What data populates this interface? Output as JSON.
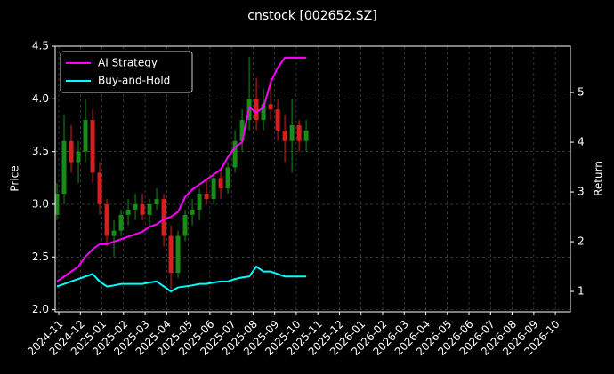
{
  "chart_data": {
    "type": "candlestick",
    "title": "cnstock [002652.SZ]",
    "ylabel": "Price",
    "y2label": "Return",
    "x": [
      2024.8264,
      2024.8539,
      2024.8814,
      2024.9089,
      2024.9364,
      2024.9639,
      2024.9913,
      2025.0188,
      2025.0463,
      2025.0738,
      2025.1013,
      2025.1288,
      2025.1562,
      2025.1837,
      2025.2112,
      2025.2387,
      2025.2662,
      2025.2936,
      2025.3211,
      2025.3486,
      2025.3761,
      2025.4036,
      2025.4311,
      2025.4585,
      2025.486,
      2025.5135,
      2025.541,
      2025.5685,
      2025.596,
      2025.6234,
      2025.6509,
      2025.6784,
      2025.7059,
      2025.7334,
      2025.7609,
      2025.7883
    ],
    "open": [
      2.9,
      3.1,
      3.6,
      3.4,
      3.5,
      3.8,
      3.3,
      3.0,
      2.7,
      2.75,
      2.9,
      2.95,
      3.0,
      2.9,
      3.0,
      3.05,
      2.7,
      2.35,
      2.7,
      2.9,
      2.95,
      3.1,
      3.05,
      3.25,
      3.15,
      3.35,
      3.6,
      3.8,
      4.0,
      3.8,
      3.95,
      3.9,
      3.7,
      3.6,
      3.75,
      3.6
    ],
    "high": [
      3.2,
      3.85,
      3.75,
      3.6,
      4.0,
      3.9,
      3.4,
      3.05,
      2.85,
      2.95,
      3.05,
      3.1,
      3.1,
      3.05,
      3.15,
      3.1,
      2.8,
      2.75,
      2.95,
      3.05,
      3.15,
      3.25,
      3.3,
      3.35,
      3.4,
      3.7,
      3.9,
      4.4,
      4.2,
      4.1,
      4.2,
      4.0,
      3.85,
      4.0,
      3.8,
      3.8
    ],
    "low": [
      2.85,
      3.0,
      3.3,
      3.2,
      3.4,
      3.2,
      2.9,
      2.6,
      2.5,
      2.7,
      2.8,
      2.85,
      2.85,
      2.8,
      2.95,
      2.6,
      2.2,
      2.3,
      2.65,
      2.8,
      2.85,
      3.0,
      3.0,
      3.05,
      3.1,
      3.3,
      3.5,
      3.7,
      3.7,
      3.7,
      3.8,
      3.6,
      3.4,
      3.3,
      3.5,
      3.5
    ],
    "close": [
      3.1,
      3.6,
      3.4,
      3.5,
      3.8,
      3.3,
      3.0,
      2.7,
      2.75,
      2.9,
      2.95,
      3.0,
      2.9,
      3.0,
      3.05,
      2.7,
      2.35,
      2.7,
      2.9,
      2.95,
      3.1,
      3.05,
      3.25,
      3.15,
      3.35,
      3.6,
      3.8,
      4.0,
      3.8,
      3.95,
      3.9,
      3.7,
      3.6,
      3.75,
      3.6,
      3.7
    ],
    "up_color": "#1a8a1a",
    "down_color": "#d42020",
    "series": [
      {
        "name": "AI Strategy",
        "color": "#ff00ff",
        "axis": "y2",
        "values": [
          1.2,
          1.3,
          1.4,
          1.5,
          1.7,
          1.85,
          1.95,
          1.95,
          2.0,
          2.05,
          2.1,
          2.15,
          2.2,
          2.3,
          2.35,
          2.45,
          2.5,
          2.6,
          2.9,
          3.05,
          3.15,
          3.25,
          3.35,
          3.45,
          3.7,
          3.9,
          4.0,
          4.7,
          4.6,
          4.7,
          5.2,
          5.5,
          5.7,
          5.7,
          5.7,
          5.7
        ]
      },
      {
        "name": "Buy-and-Hold",
        "color": "#00ffff",
        "axis": "y2",
        "values": [
          1.1,
          1.15,
          1.2,
          1.25,
          1.3,
          1.35,
          1.2,
          1.1,
          1.12,
          1.15,
          1.15,
          1.15,
          1.15,
          1.18,
          1.2,
          1.1,
          1.0,
          1.08,
          1.1,
          1.12,
          1.15,
          1.15,
          1.18,
          1.2,
          1.2,
          1.25,
          1.28,
          1.3,
          1.5,
          1.4,
          1.4,
          1.35,
          1.3,
          1.3,
          1.3,
          1.3
        ]
      }
    ],
    "xlim": [
      2024.8195,
      2026.808
    ],
    "xticks": [
      {
        "value": 2024.8333,
        "label": "2024-11"
      },
      {
        "value": 2024.9167,
        "label": "2024-12"
      },
      {
        "value": 2025.0,
        "label": "2025-01"
      },
      {
        "value": 2025.0833,
        "label": "2025-02"
      },
      {
        "value": 2025.1667,
        "label": "2025-03"
      },
      {
        "value": 2025.25,
        "label": "2025-04"
      },
      {
        "value": 2025.3333,
        "label": "2025-05"
      },
      {
        "value": 2025.4167,
        "label": "2025-06"
      },
      {
        "value": 2025.5,
        "label": "2025-07"
      },
      {
        "value": 2025.5833,
        "label": "2025-08"
      },
      {
        "value": 2025.6667,
        "label": "2025-09"
      },
      {
        "value": 2025.75,
        "label": "2025-10"
      },
      {
        "value": 2025.8333,
        "label": "2025-11"
      },
      {
        "value": 2025.9167,
        "label": "2025-12"
      },
      {
        "value": 2026.0,
        "label": "2026-01"
      },
      {
        "value": 2026.0833,
        "label": "2026-02"
      },
      {
        "value": 2026.1667,
        "label": "2026-03"
      },
      {
        "value": 2026.25,
        "label": "2026-04"
      },
      {
        "value": 2026.3333,
        "label": "2026-05"
      },
      {
        "value": 2026.4167,
        "label": "2026-06"
      },
      {
        "value": 2026.5,
        "label": "2026-07"
      },
      {
        "value": 2026.5833,
        "label": "2026-08"
      },
      {
        "value": 2026.6667,
        "label": "2026-09"
      },
      {
        "value": 2026.75,
        "label": "2026-10"
      }
    ],
    "ylim": [
      1.98,
      4.5
    ],
    "yticks": [
      {
        "value": 2,
        "label": "2.0"
      },
      2.5,
      {
        "value": 3,
        "label": "3.0"
      },
      3.5,
      {
        "value": 4,
        "label": "4.0"
      },
      4.5
    ],
    "y2lim": [
      0.59,
      5.93
    ],
    "y2ticks": [
      1,
      2,
      3,
      4,
      5
    ],
    "grid": true,
    "legend": "upper left"
  }
}
